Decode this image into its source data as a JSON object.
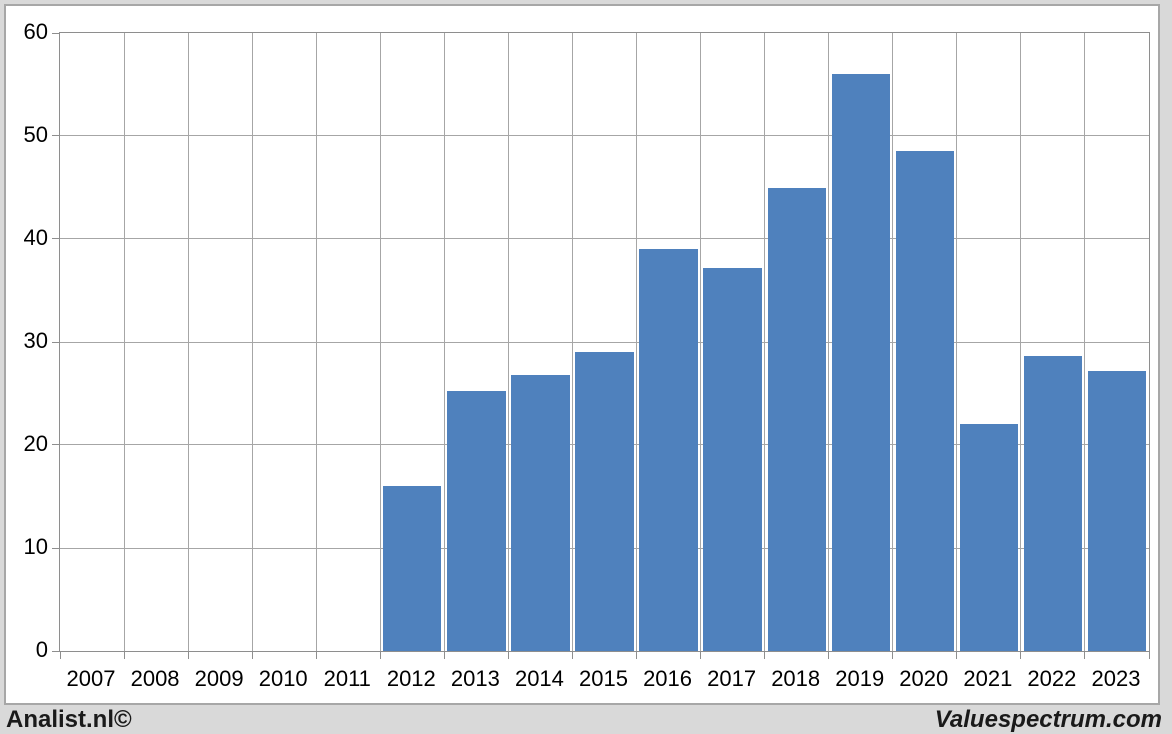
{
  "branding": {
    "left": "Analist.nl©",
    "right": "Valuespectrum.com"
  },
  "colors": {
    "bar": "#4f81bd",
    "gridline": "#a6a6a6",
    "axis": "#8e8e8e",
    "page_background": "#d9d9d9",
    "plot_background": "#ffffff"
  },
  "chart_data": {
    "type": "bar",
    "title": "",
    "xlabel": "",
    "ylabel": "",
    "categories": [
      "2007",
      "2008",
      "2009",
      "2010",
      "2011",
      "2012",
      "2013",
      "2014",
      "2015",
      "2016",
      "2017",
      "2018",
      "2019",
      "2020",
      "2021",
      "2022",
      "2023"
    ],
    "values": [
      null,
      null,
      null,
      null,
      null,
      16,
      25.2,
      26.8,
      29,
      39,
      37.2,
      45,
      56,
      48.5,
      22,
      28.6,
      27.2
    ],
    "ylim": [
      0,
      60
    ],
    "ytick_step": 10,
    "ytick_labels": [
      "0",
      "10",
      "20",
      "30",
      "40",
      "50",
      "60"
    ],
    "grid": true,
    "legend": "none",
    "bar_color": "#4f81bd"
  }
}
